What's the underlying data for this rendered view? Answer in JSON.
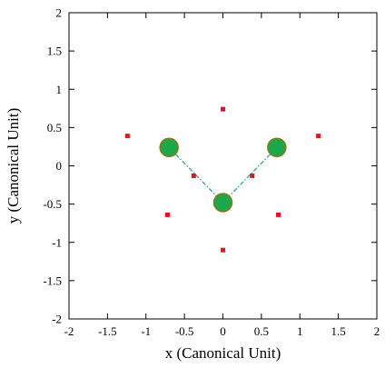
{
  "chart_data": {
    "type": "scatter",
    "xlabel": "x (Canonical Unit)",
    "ylabel": "y (Canonical Unit)",
    "xlim": [
      -2,
      2
    ],
    "ylim": [
      -2,
      2
    ],
    "xticks": [
      -2,
      -1.5,
      -1,
      -0.5,
      0,
      0.5,
      1,
      1.5,
      2
    ],
    "yticks": [
      -2,
      -1.5,
      -1,
      -0.5,
      0,
      0.5,
      1,
      1.5,
      2
    ],
    "xtick_labels": [
      "-2",
      "-1.5",
      "-1",
      "-0.5",
      "0",
      "0.5",
      "1",
      "1.5",
      "2"
    ],
    "ytick_labels": [
      "-2",
      "-1.5",
      "-1",
      "-0.5",
      "0",
      "0.5",
      "1",
      "1.5",
      "2"
    ],
    "grid": false,
    "series": [
      {
        "marker": "square",
        "color": "#e8141a",
        "points": [
          [
            0.0,
            0.74
          ],
          [
            -1.24,
            0.39
          ],
          [
            1.24,
            0.39
          ],
          [
            -0.38,
            -0.13
          ],
          [
            0.38,
            -0.13
          ],
          [
            -0.72,
            -0.64
          ],
          [
            0.72,
            -0.64
          ],
          [
            0.0,
            -1.1
          ]
        ]
      },
      {
        "marker": "circle",
        "color": "#1aa84a",
        "edge_color": "#8a7a1a",
        "points": [
          [
            -0.7,
            0.24
          ],
          [
            0.7,
            0.24
          ],
          [
            0.0,
            -0.48
          ]
        ]
      }
    ],
    "bonds": {
      "color": "#1aa08a",
      "style": "dash-dot",
      "pairs": [
        [
          [
            -0.7,
            0.24
          ],
          [
            0.0,
            -0.48
          ]
        ],
        [
          [
            0.7,
            0.24
          ],
          [
            0.0,
            -0.48
          ]
        ]
      ]
    }
  }
}
